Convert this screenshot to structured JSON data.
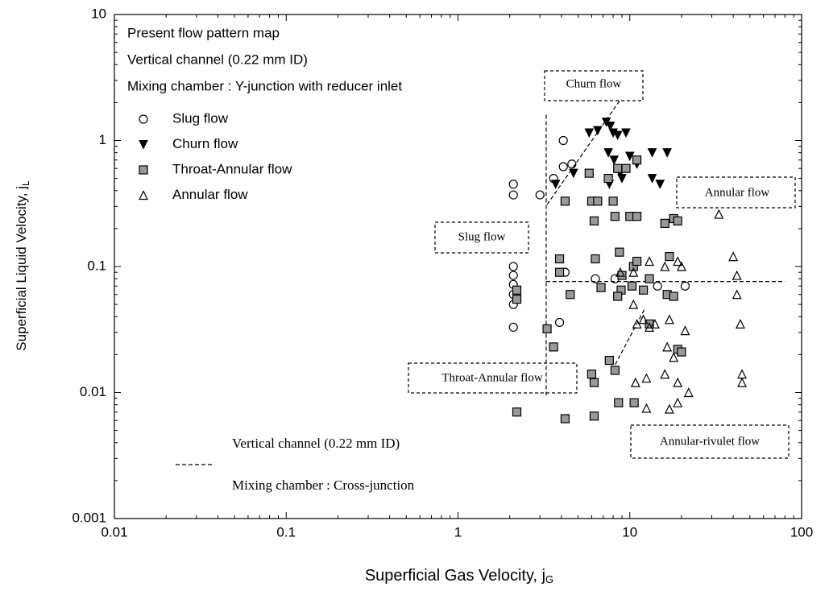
{
  "chart_data": {
    "type": "scatter",
    "x_label": "Superficial Gas Velocity, j",
    "x_label_sub": "G",
    "y_label": "Superficial Liquid Velocity, j",
    "y_label_sub": "L",
    "log_x": true,
    "log_y": true,
    "xlim": [
      0.01,
      100
    ],
    "ylim": [
      0.001,
      10
    ],
    "xticks": [
      0.01,
      0.1,
      1,
      10,
      100
    ],
    "yticks": [
      0.001,
      0.01,
      0.1,
      1,
      10
    ],
    "info_box": [
      "Present flow pattern map",
      "Vertical channel (0.22 mm ID)",
      "Mixing chamber : Y-junction with reducer inlet"
    ],
    "regions": [
      "Churn flow",
      "Annular flow",
      "Slug flow",
      "Throat-Annular flow",
      "Annular-rivulet flow"
    ],
    "dashed_legend": [
      "Vertical channel (0.22 mm ID)",
      "Mixing chamber : Cross-junction"
    ],
    "series": [
      {
        "name": "Slug flow",
        "marker": "circle",
        "color": "#000000",
        "x": [
          2.1,
          2.1,
          2.1,
          2.1,
          2.1,
          2.1,
          2.1,
          2.1,
          3.0,
          3.6,
          4.1,
          4.1,
          4.2,
          3.9,
          6.3,
          8.2,
          14.5,
          21,
          4.6
        ],
        "values": [
          0.45,
          0.37,
          0.1,
          0.085,
          0.072,
          0.06,
          0.05,
          0.033,
          0.37,
          0.5,
          0.62,
          1.0,
          0.09,
          0.036,
          0.08,
          0.08,
          0.07,
          0.07,
          0.65
        ]
      },
      {
        "name": "Churn flow",
        "marker": "triangle-down",
        "color": "#000000",
        "x": [
          3.7,
          4.7,
          5.8,
          6.5,
          7.3,
          7.7,
          8,
          8.5,
          9.5,
          7.5,
          8.1,
          8.8,
          10,
          11,
          13.5,
          16.5,
          13.5,
          15,
          9,
          7.6
        ],
        "values": [
          0.45,
          0.55,
          1.15,
          1.2,
          1.4,
          1.3,
          1.15,
          1.1,
          1.15,
          0.8,
          0.7,
          0.55,
          0.75,
          0.65,
          0.8,
          0.8,
          0.5,
          0.45,
          0.5,
          0.45
        ]
      },
      {
        "name": "Throat-Annular flow",
        "marker": "square",
        "color": "#000000",
        "x": [
          2.2,
          2.2,
          3.3,
          3.6,
          3.9,
          3.9,
          4.2,
          4.5,
          5.8,
          6,
          6.2,
          6.3,
          6.8,
          6.5,
          7.5,
          8,
          8.2,
          8.5,
          8.7,
          9,
          8.9,
          8.5,
          10,
          11,
          10.3,
          10.5,
          11,
          12,
          13,
          16,
          17,
          18,
          19,
          16.5,
          18,
          7.6,
          8.2,
          6,
          6.2,
          2.2,
          4.2,
          6.2,
          8.6,
          10.6,
          13,
          19,
          20,
          11,
          9.5
        ],
        "values": [
          0.065,
          0.055,
          0.032,
          0.023,
          0.115,
          0.09,
          0.33,
          0.06,
          0.55,
          0.33,
          0.23,
          0.115,
          0.068,
          0.33,
          0.5,
          0.33,
          0.25,
          0.6,
          0.13,
          0.085,
          0.065,
          0.058,
          0.25,
          0.25,
          0.07,
          0.1,
          0.11,
          0.065,
          0.08,
          0.22,
          0.12,
          0.24,
          0.23,
          0.06,
          0.058,
          0.018,
          0.015,
          0.014,
          0.012,
          0.007,
          0.0062,
          0.0065,
          0.0083,
          0.0083,
          0.035,
          0.022,
          0.021,
          0.7,
          0.6
        ]
      },
      {
        "name": "Annular flow",
        "marker": "triangle-up",
        "color": "#000000",
        "x": [
          10.5,
          11,
          12,
          13,
          14,
          10.5,
          13,
          16,
          19,
          20,
          16.5,
          18,
          21,
          22,
          19,
          17,
          12.5,
          10.8,
          12.5,
          16,
          19,
          40,
          42,
          42,
          44,
          45,
          45,
          33,
          17,
          8.8
        ],
        "values": [
          0.05,
          0.035,
          0.038,
          0.033,
          0.035,
          0.09,
          0.11,
          0.1,
          0.11,
          0.1,
          0.023,
          0.019,
          0.031,
          0.01,
          0.0083,
          0.0074,
          0.0075,
          0.012,
          0.013,
          0.014,
          0.012,
          0.12,
          0.085,
          0.06,
          0.035,
          0.014,
          0.012,
          0.26,
          0.038,
          0.09
        ]
      }
    ],
    "lines": [
      {
        "x": [
          3.26,
          3.26
        ],
        "values": [
          1.6,
          0.0095
        ]
      },
      {
        "x": [
          3.26,
          80
        ],
        "values": [
          0.076,
          0.076
        ]
      },
      {
        "x": [
          3.3,
          8.8
        ],
        "values": [
          0.31,
          2.1
        ]
      },
      {
        "x": [
          7.9,
          12.2
        ],
        "values": [
          0.015,
          0.046
        ]
      }
    ]
  }
}
